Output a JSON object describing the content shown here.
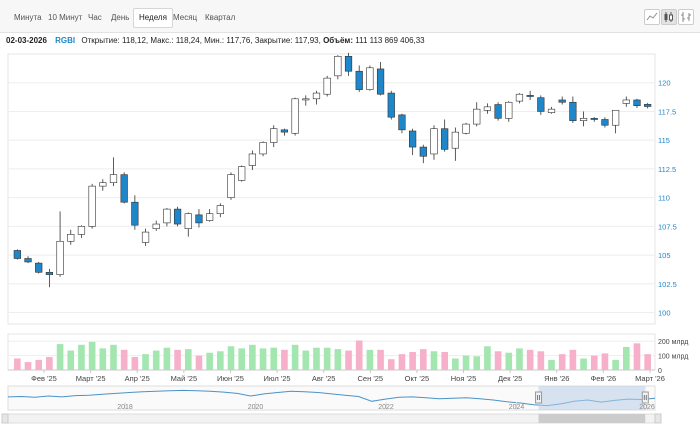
{
  "toolbar": {
    "tabs": [
      {
        "label": "Минута"
      },
      {
        "label": "10 Минут"
      },
      {
        "label": "Час"
      },
      {
        "label": "День"
      },
      {
        "label": "Неделя"
      },
      {
        "label": "Месяц"
      },
      {
        "label": "Квартал"
      }
    ],
    "active_tab": "Неделя",
    "icons": [
      "line-chart-icon",
      "candlestick-icon",
      "bar-chart-icon"
    ]
  },
  "info": {
    "date": "02-03-2026",
    "ticker": "RGBI",
    "open_label": "Открытие:",
    "open": "118,12",
    "high_label": "Макс.:",
    "high": "118,24",
    "low_label": "Мин.:",
    "low": "117,76",
    "close_label": "Закрытие:",
    "close": "117,93",
    "volume_label": "Объём:",
    "volume": "111 113 869 406,33"
  },
  "chart_data": {
    "type": "candlestick",
    "y_ticks": [
      "100",
      "102.5",
      "105",
      "107.5",
      "110",
      "112.5",
      "115",
      "117.5",
      "120"
    ],
    "ylim": [
      99,
      122.5
    ],
    "volume_ticks": [
      "0",
      "100 млрд",
      "200 млрд"
    ],
    "volume_ylim": [
      0,
      250
    ],
    "x_ticks": [
      "Фев '25",
      "Март '25",
      "Апр '25",
      "Май '25",
      "Июн '25",
      "Июл '25",
      "Авг '25",
      "Сен '25",
      "Окт '25",
      "Ноя '25",
      "Дек '25",
      "Янв '26",
      "Фев '26",
      "Март '26"
    ],
    "navigator_ticks": [
      "2018",
      "2020",
      "2022",
      "2024",
      "2026"
    ],
    "colors": {
      "up": "#ffffff",
      "down": "#1f86c9",
      "vol_up": "#a3e6b0",
      "vol_down": "#f7b0c9",
      "nav_line": "#4b93c7",
      "nav_window": "#b8cde6",
      "y_tick_text": "#1f86c9"
    },
    "candles": [
      [
        105.4,
        105.5,
        104.6,
        104.7
      ],
      [
        104.7,
        104.9,
        104.3,
        104.4
      ],
      [
        104.3,
        104.4,
        103.4,
        103.5
      ],
      [
        103.5,
        103.8,
        102.2,
        103.3
      ],
      [
        103.3,
        108.8,
        103.1,
        106.2
      ],
      [
        106.2,
        107.2,
        105.9,
        106.8
      ],
      [
        106.8,
        107.6,
        106.5,
        107.5
      ],
      [
        107.5,
        111.2,
        107.3,
        111.0
      ],
      [
        111.0,
        111.6,
        110.6,
        111.3
      ],
      [
        111.3,
        113.5,
        111.0,
        112.0
      ],
      [
        112.0,
        112.2,
        109.5,
        109.6
      ],
      [
        109.6,
        110.2,
        107.2,
        107.6
      ],
      [
        106.1,
        107.3,
        105.8,
        107.0
      ],
      [
        107.3,
        108.0,
        107.1,
        107.7
      ],
      [
        107.8,
        109.1,
        107.5,
        109.0
      ],
      [
        109.0,
        109.2,
        107.5,
        107.7
      ],
      [
        107.3,
        108.7,
        106.6,
        108.6
      ],
      [
        108.5,
        109.0,
        107.4,
        107.8
      ],
      [
        108.0,
        109.0,
        107.9,
        108.6
      ],
      [
        108.6,
        109.5,
        108.3,
        109.3
      ],
      [
        110.0,
        112.2,
        109.8,
        112.0
      ],
      [
        111.5,
        112.8,
        111.4,
        112.7
      ],
      [
        112.8,
        114.1,
        112.4,
        113.8
      ],
      [
        113.8,
        114.9,
        113.6,
        114.8
      ],
      [
        114.8,
        116.3,
        114.4,
        116.0
      ],
      [
        115.9,
        116.0,
        115.4,
        115.7
      ],
      [
        115.6,
        118.7,
        115.4,
        118.6
      ],
      [
        118.5,
        118.9,
        118.0,
        118.6
      ],
      [
        118.6,
        119.3,
        118.1,
        119.1
      ],
      [
        119.0,
        120.6,
        118.8,
        120.4
      ],
      [
        120.6,
        122.4,
        120.3,
        122.3
      ],
      [
        122.3,
        122.6,
        120.6,
        121.0
      ],
      [
        121.0,
        121.5,
        119.2,
        119.4
      ],
      [
        119.4,
        121.5,
        119.3,
        121.3
      ],
      [
        121.2,
        121.8,
        118.9,
        119.0
      ],
      [
        119.1,
        119.3,
        116.8,
        117.0
      ],
      [
        117.2,
        117.3,
        115.6,
        115.9
      ],
      [
        115.8,
        116.0,
        113.7,
        114.4
      ],
      [
        114.4,
        114.6,
        113.0,
        113.6
      ],
      [
        113.8,
        116.3,
        113.3,
        116.0
      ],
      [
        116.0,
        116.8,
        114.0,
        114.2
      ],
      [
        114.3,
        116.1,
        113.2,
        115.7
      ],
      [
        115.6,
        116.5,
        115.5,
        116.4
      ],
      [
        116.4,
        118.3,
        116.2,
        117.7
      ],
      [
        117.6,
        118.2,
        117.3,
        117.9
      ],
      [
        118.1,
        118.3,
        116.7,
        116.9
      ],
      [
        116.9,
        118.4,
        116.6,
        118.3
      ],
      [
        118.4,
        119.1,
        118.2,
        119.0
      ],
      [
        118.9,
        119.3,
        118.5,
        118.8
      ],
      [
        118.7,
        118.9,
        117.2,
        117.5
      ],
      [
        117.4,
        117.9,
        117.3,
        117.7
      ],
      [
        118.5,
        118.8,
        118.1,
        118.3
      ],
      [
        118.3,
        118.8,
        116.5,
        116.7
      ],
      [
        116.7,
        117.5,
        116.2,
        116.9
      ],
      [
        116.9,
        117.0,
        116.6,
        116.8
      ],
      [
        116.8,
        117.0,
        116.1,
        116.3
      ],
      [
        116.3,
        117.6,
        115.6,
        117.6
      ],
      [
        118.2,
        118.8,
        117.9,
        118.5
      ],
      [
        118.5,
        118.6,
        117.8,
        118.0
      ],
      [
        118.12,
        118.24,
        117.76,
        117.93
      ]
    ],
    "volumes": [
      80,
      55,
      70,
      90,
      180,
      135,
      175,
      195,
      150,
      175,
      140,
      90,
      110,
      135,
      155,
      140,
      145,
      100,
      120,
      130,
      165,
      150,
      175,
      150,
      155,
      140,
      175,
      135,
      155,
      155,
      145,
      135,
      205,
      140,
      140,
      75,
      110,
      125,
      145,
      130,
      125,
      80,
      100,
      95,
      165,
      130,
      120,
      150,
      140,
      130,
      70,
      110,
      140,
      80,
      100,
      115,
      70,
      160,
      185,
      110
    ],
    "navigator_values": [
      8.6,
      8.7,
      8.5,
      8.8,
      8.6,
      8.9,
      9.0,
      9.2,
      9.4,
      9.6,
      9.8,
      9.9,
      10.0,
      10.1,
      10.0,
      9.9,
      9.7,
      9.4,
      8.8,
      9.3,
      9.6,
      9.9,
      9.8,
      9.6,
      9.3,
      9.0,
      8.7,
      7.6,
      8.1,
      8.5,
      8.6,
      8.4,
      8.2,
      8.3,
      8.4,
      8.2,
      7.9,
      7.5,
      7.2,
      6.8,
      6.6,
      7.0,
      7.6,
      7.9,
      7.4,
      7.8,
      8.1,
      8.0,
      8.3
    ],
    "navigator_window": {
      "from_fraction": 0.82,
      "to_fraction": 0.985
    }
  }
}
